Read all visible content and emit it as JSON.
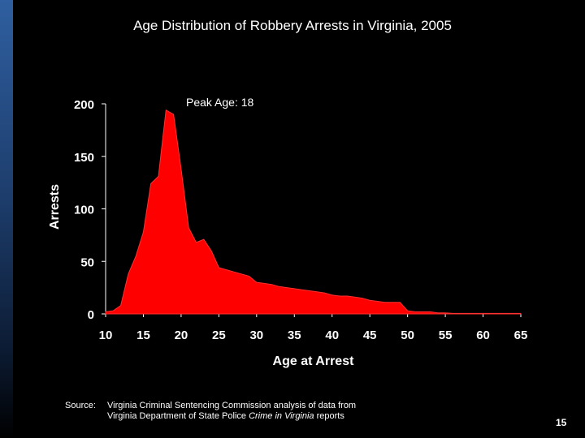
{
  "slide": {
    "title": "Age Distribution of Robbery Arrests in Virginia, 2005",
    "source_label": "Source:",
    "source_line1": "Virginia Criminal Sentencing Commission analysis of data from",
    "source_line2_prefix": "Virginia Department of State Police ",
    "source_line2_italic": "Crime in Virginia",
    "source_line2_suffix": " reports",
    "page_number": "15"
  },
  "chart_data": {
    "type": "area",
    "title": "Age Distribution of Robbery Arrests in Virginia, 2005",
    "xlabel": "Age at Arrest",
    "ylabel": "Arrests",
    "annotation": "Peak Age: 18",
    "xlim": [
      10,
      65
    ],
    "ylim": [
      0,
      200
    ],
    "xticks": [
      10,
      15,
      20,
      25,
      30,
      35,
      40,
      45,
      50,
      55,
      60,
      65
    ],
    "yticks": [
      0,
      50,
      100,
      150,
      200
    ],
    "grid": false,
    "fill_color": "#ff0000",
    "x": [
      10,
      11,
      12,
      13,
      14,
      15,
      16,
      17,
      18,
      19,
      20,
      21,
      22,
      23,
      24,
      25,
      26,
      27,
      28,
      29,
      30,
      31,
      32,
      33,
      34,
      35,
      36,
      37,
      38,
      39,
      40,
      41,
      42,
      43,
      44,
      45,
      46,
      47,
      48,
      49,
      50,
      51,
      52,
      53,
      54,
      55,
      56,
      57,
      58,
      59,
      60,
      61,
      62,
      63,
      64,
      65
    ],
    "y": [
      2,
      3,
      8,
      38,
      55,
      78,
      124,
      131,
      194,
      190,
      138,
      82,
      68,
      71,
      60,
      44,
      42,
      40,
      38,
      36,
      30,
      29,
      28,
      26,
      25,
      24,
      23,
      22,
      21,
      20,
      18,
      17,
      17,
      16,
      15,
      13,
      12,
      11,
      11,
      11,
      3,
      2,
      2,
      2,
      1,
      1,
      0.5,
      0.5,
      0.5,
      0.5,
      0.5,
      0.5,
      0.5,
      0.5,
      0.5,
      0.5
    ]
  }
}
